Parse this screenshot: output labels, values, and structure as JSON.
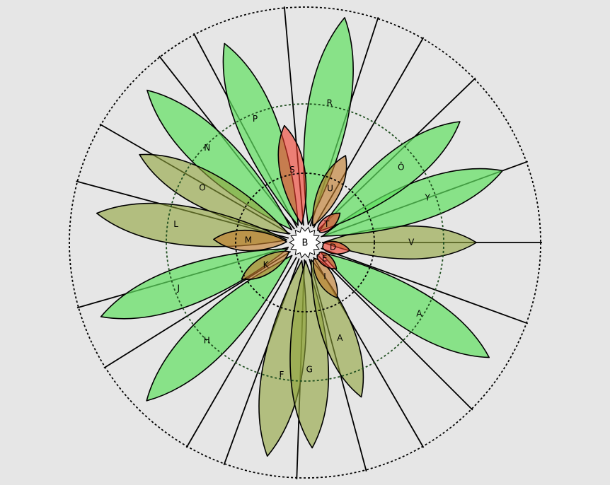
{
  "center_label": "B",
  "colors": {
    "green": "#5fe05f",
    "olive": "#8fa33a",
    "brown": "#c07a2a",
    "red": "#f03a2a"
  },
  "petals": [
    {
      "label": "R",
      "angle": -80,
      "len": 1.0,
      "color": "green"
    },
    {
      "label": "P",
      "angle": -112,
      "len": 0.94,
      "color": "green"
    },
    {
      "label": "N",
      "angle": -136,
      "len": 0.96,
      "color": "green"
    },
    {
      "label": "O",
      "angle": -152,
      "len": 0.82,
      "color": "olive"
    },
    {
      "label": "L",
      "angle": -172,
      "len": 0.92,
      "color": "olive"
    },
    {
      "label": "J",
      "angle": 160,
      "len": 0.95,
      "color": "green"
    },
    {
      "label": "H",
      "angle": 135,
      "len": 0.98,
      "color": "green"
    },
    {
      "label": "F",
      "angle": 100,
      "len": 0.95,
      "color": "olive"
    },
    {
      "label": "G",
      "angle": 88,
      "len": 0.9,
      "color": "olive"
    },
    {
      "label": "A",
      "angle": 70,
      "len": 0.72,
      "color": "olive"
    },
    {
      "label": "A",
      "angle": 32,
      "len": 0.95,
      "color": "green"
    },
    {
      "label": "V",
      "angle": 0,
      "len": 0.75,
      "color": "olive"
    },
    {
      "label": "Y",
      "angle": -20,
      "len": 0.92,
      "color": "green"
    },
    {
      "label": "Ô",
      "angle": -38,
      "len": 0.86,
      "color": "green"
    },
    {
      "label": "U",
      "angle": -65,
      "len": 0.42,
      "color": "brown"
    },
    {
      "label": "M",
      "angle": -178,
      "len": 0.4,
      "color": "brown"
    },
    {
      "label": "K",
      "angle": 150,
      "len": 0.32,
      "color": "brown"
    },
    {
      "label": "I",
      "angle": 60,
      "len": 0.28,
      "color": "brown"
    },
    {
      "label": "S",
      "angle": -100,
      "len": 0.52,
      "color": "red"
    },
    {
      "label": "T",
      "angle": -40,
      "len": 0.2,
      "color": "red"
    },
    {
      "label": "D",
      "angle": 10,
      "len": 0.2,
      "color": "red"
    },
    {
      "label": "E",
      "angle": 40,
      "len": 0.18,
      "color": "red"
    }
  ]
}
